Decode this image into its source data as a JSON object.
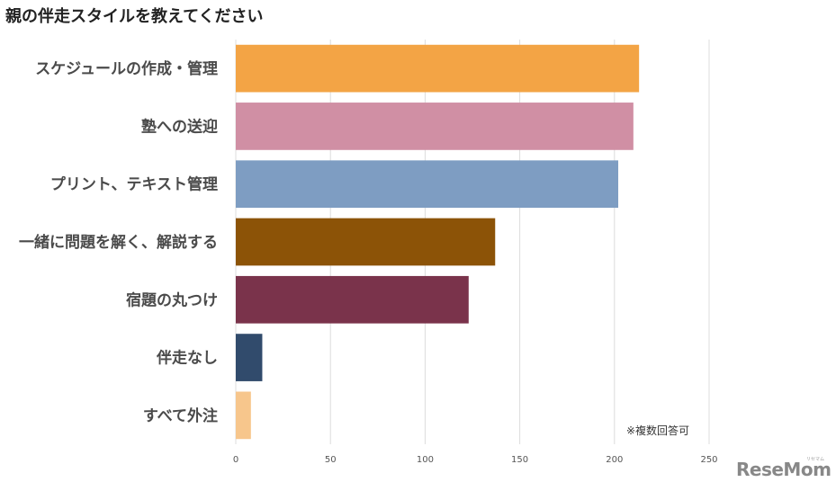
{
  "chart_data": {
    "type": "bar",
    "orientation": "horizontal",
    "title": "親の伴走スタイルを教えてください",
    "categories": [
      "スケジュールの作成・管理",
      "塾への送迎",
      "プリント、テキスト管理",
      "一緒に問題を解く、解説する",
      "宿題の丸つけ",
      "伴走なし",
      "すべて外注"
    ],
    "values": [
      213,
      210,
      202,
      137,
      123,
      14,
      8
    ],
    "colors": [
      "#F3A445",
      "#D08FA4",
      "#7E9DC2",
      "#8C5307",
      "#7A334B",
      "#314B6C",
      "#F7C68C"
    ],
    "xlim": [
      0,
      250
    ],
    "xticks": [
      0,
      50,
      100,
      150,
      200,
      250
    ],
    "grid": true,
    "note": "※複数回答可"
  },
  "branding": {
    "logo": "ReseMom",
    "logo_sub": "リセマム"
  }
}
